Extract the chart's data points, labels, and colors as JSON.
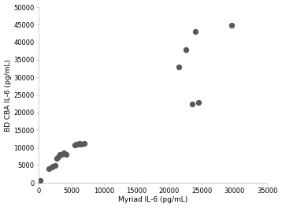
{
  "x": [
    200,
    1500,
    2000,
    2200,
    2500,
    2700,
    3000,
    3200,
    3500,
    3800,
    4200,
    5500,
    5800,
    6000,
    6200,
    6500,
    7000,
    21500,
    22500,
    23500,
    24000,
    24500,
    29500
  ],
  "y": [
    700,
    4000,
    4500,
    4800,
    5000,
    7000,
    7500,
    8000,
    8200,
    8500,
    8200,
    10800,
    11000,
    11100,
    11200,
    10900,
    11200,
    33000,
    37800,
    22500,
    43000,
    23000,
    44800
  ],
  "xlabel": "Myriad IL-6 (pg/mL)",
  "ylabel": "BD CBA IL-6 (pg/mL)",
  "xlim": [
    0,
    35000
  ],
  "ylim": [
    0,
    50000
  ],
  "xticks": [
    0,
    5000,
    10000,
    15000,
    20000,
    25000,
    30000,
    35000
  ],
  "yticks": [
    0,
    5000,
    10000,
    15000,
    20000,
    25000,
    30000,
    35000,
    40000,
    45000,
    50000
  ],
  "marker_color": "#595959",
  "marker_size": 28,
  "background_color": "#ffffff",
  "label_fontsize": 6.5,
  "tick_fontsize": 6.0,
  "spine_color": "#bbbbbb"
}
